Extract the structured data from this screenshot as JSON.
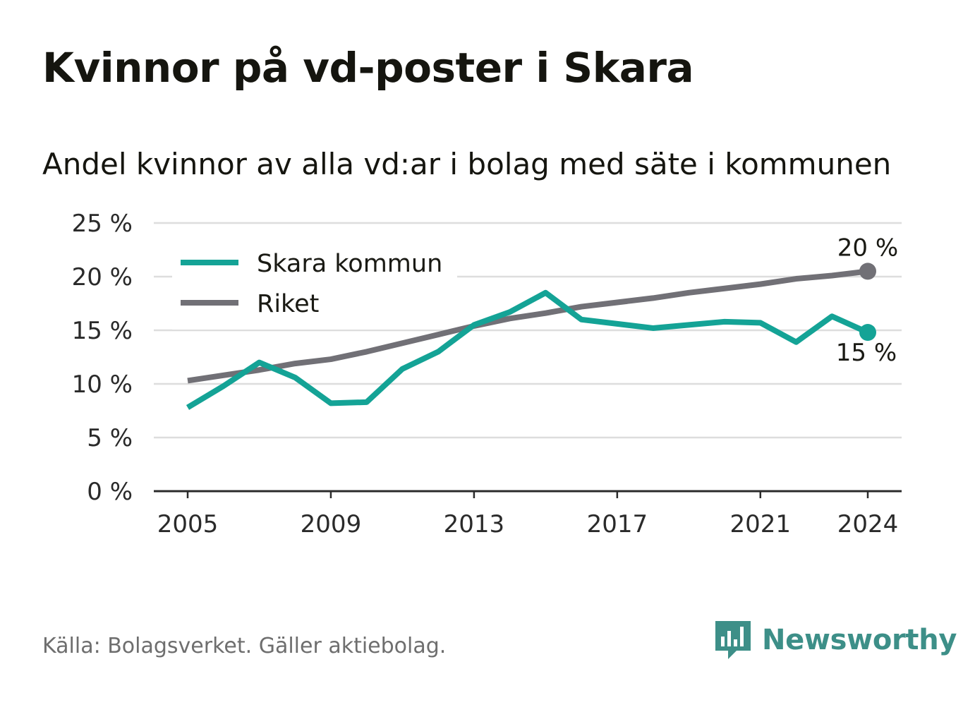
{
  "title": "Kvinnor på vd-poster i Skara",
  "subtitle": "Andel kvinnor av alla vd:ar i bolag med säte i kommunen",
  "source": "Källa: Bolagsverket. Gäller aktiebolag.",
  "brand": {
    "name": "Newsworthy",
    "color": "#3d8f88",
    "icon": "bar-chart-speech-bubble-icon"
  },
  "chart_data": {
    "type": "line",
    "x": [
      2005,
      2006,
      2007,
      2008,
      2009,
      2010,
      2011,
      2012,
      2013,
      2014,
      2015,
      2016,
      2017,
      2018,
      2019,
      2020,
      2021,
      2022,
      2023,
      2024
    ],
    "x_ticks": [
      2005,
      2009,
      2013,
      2017,
      2021,
      2024
    ],
    "x_tick_labels": [
      "2005",
      "2009",
      "2013",
      "2017",
      "2021",
      "2024"
    ],
    "ylim": [
      0,
      25
    ],
    "y_ticks": [
      0,
      5,
      10,
      15,
      20,
      25
    ],
    "y_tick_labels": [
      "0 %",
      "5 %",
      "10 %",
      "15 %",
      "20 %",
      "25 %"
    ],
    "grid": true,
    "legend_position": "top-left",
    "series": [
      {
        "name": "Skara kommun",
        "color": "#14a396",
        "values": [
          7.8,
          9.8,
          12.0,
          10.6,
          8.2,
          8.3,
          11.4,
          13.0,
          15.5,
          16.7,
          18.5,
          16.0,
          15.6,
          15.2,
          15.5,
          15.8,
          15.7,
          13.9,
          16.3,
          14.8
        ],
        "end_label": "15 %"
      },
      {
        "name": "Riket",
        "color": "#717076",
        "values": [
          10.3,
          10.8,
          11.3,
          11.9,
          12.3,
          13.0,
          13.8,
          14.6,
          15.4,
          16.1,
          16.6,
          17.2,
          17.6,
          18.0,
          18.5,
          18.9,
          19.3,
          19.8,
          20.1,
          20.5
        ],
        "end_label": "20 %"
      }
    ]
  }
}
